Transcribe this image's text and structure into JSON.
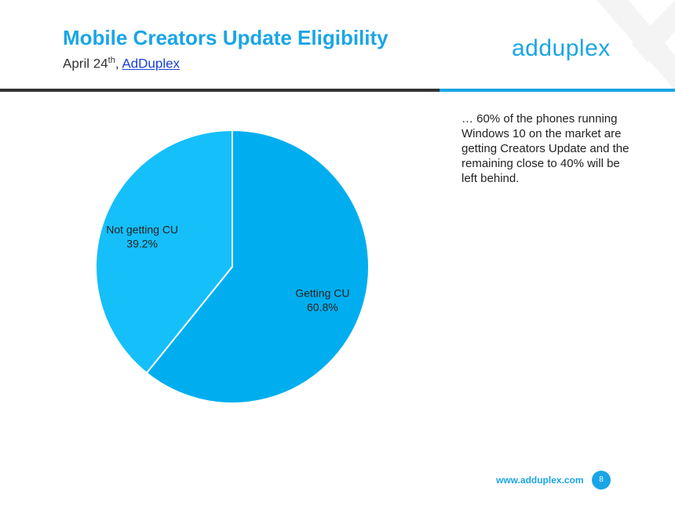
{
  "header": {
    "title": "Mobile Creators Update Eligibility",
    "date_prefix": "April 24",
    "date_suffix": "th",
    "separator": ", ",
    "source_link": "AdDuplex",
    "logo_text": "adduplex"
  },
  "note": {
    "text": "… 60% of the phones running Windows 10 on the market are getting Creators Update and the remaining close to 40% will be left behind."
  },
  "footer": {
    "url": "www.adduplex.com",
    "page_number": "8"
  },
  "colors": {
    "accent": "#1aa5e6",
    "getting_cu": "#00aeef",
    "not_getting_cu": "#15bffa"
  },
  "chart_data": {
    "type": "pie",
    "title": "",
    "slices": [
      {
        "label": "Getting CU",
        "value": 60.8,
        "value_label": "60.8%",
        "color": "#00aeef"
      },
      {
        "label": "Not getting CU",
        "value": 39.2,
        "value_label": "39.2%",
        "color": "#15bffa"
      }
    ],
    "start_angle": "12 o'clock",
    "direction": "clockwise",
    "legend": "none (labels on slices)"
  }
}
